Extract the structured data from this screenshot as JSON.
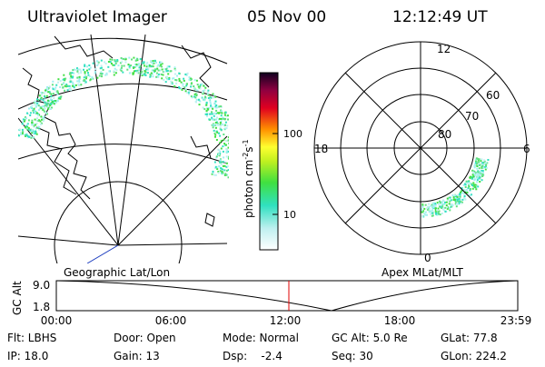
{
  "header": {
    "title": "Ultraviolet Imager",
    "date": "05 Nov 00",
    "time": "12:12:49 UT"
  },
  "colorbar": {
    "label": [
      "photon cm",
      "-2",
      "s",
      "-1"
    ],
    "ticks": [
      "100",
      "10"
    ]
  },
  "polar": {
    "labels": [
      "12",
      "60",
      "70",
      "80",
      "18",
      "6",
      "0"
    ]
  },
  "panel_labels": {
    "left": "Geographic Lat/Lon",
    "right": "Apex MLat/MLT"
  },
  "timeline": {
    "axis_label": "GC Alt",
    "y_labels": [
      "9.0",
      "1.8"
    ],
    "x_labels": [
      "00:00",
      "06:00",
      "12:00",
      "18:00",
      "23:59"
    ]
  },
  "info": {
    "rows": [
      [
        "Flt: LBHS",
        "Door: Open",
        "Mode: Normal",
        "GC Alt: 5.0 Re",
        "GLat: 77.8"
      ],
      [
        "IP: 18.0",
        "Gain: 13",
        "Dsp:    -2.4",
        "Seq: 30",
        "GLon: 224.2"
      ]
    ]
  }
}
